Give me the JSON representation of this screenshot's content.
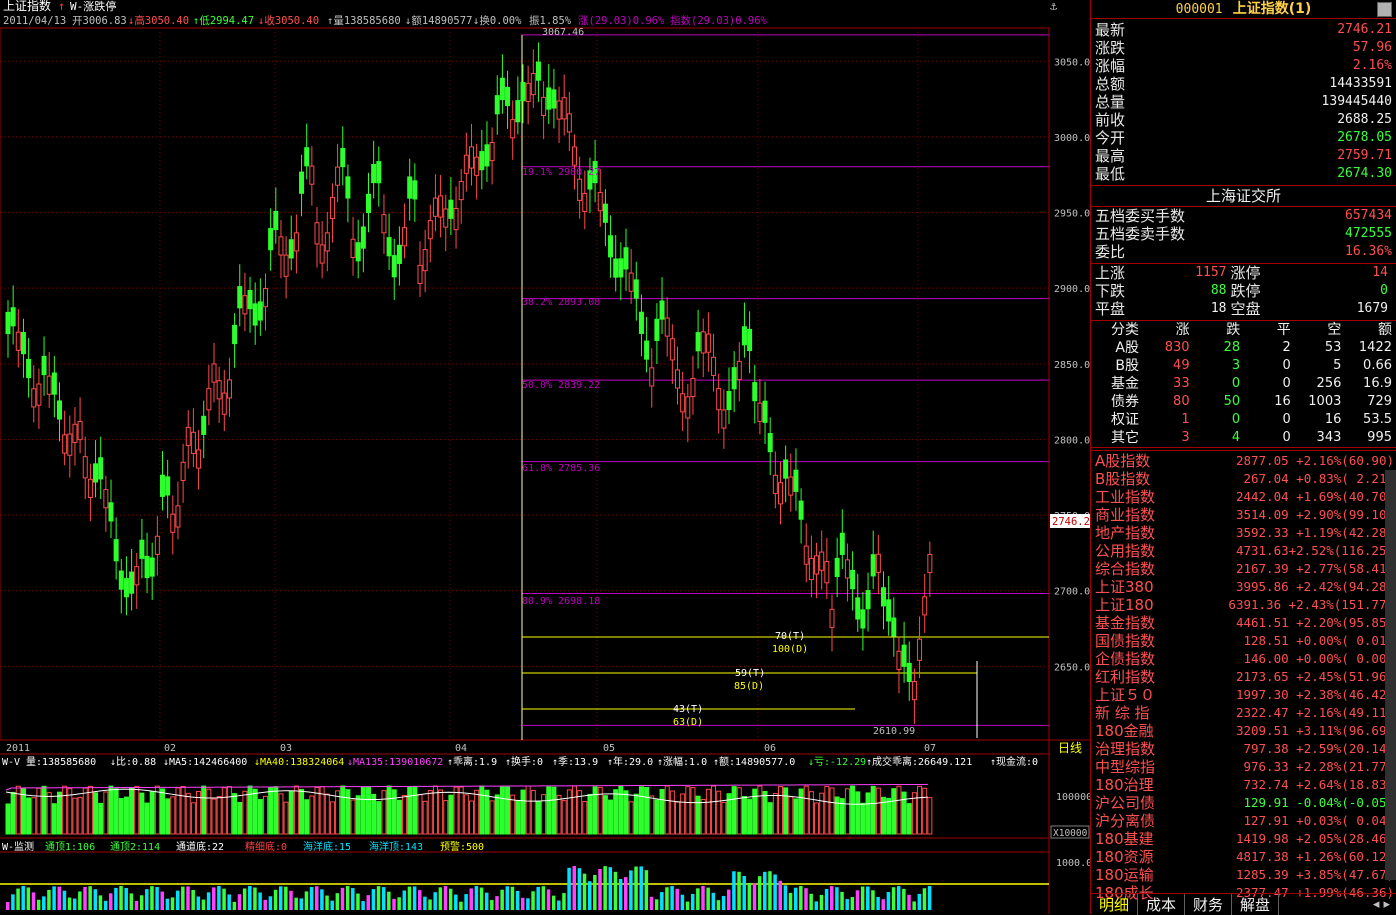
{
  "chart_header": {
    "title": "上证指数",
    "study": "W-涨跌停",
    "date": "2011/04/13",
    "open": "开3006.83",
    "high": "↓高3050.40",
    "low": "↑低2994.47",
    "close": "↓收3050.40",
    "vol": "↑量138585680",
    "amt": "↓额14890577",
    "turn": "↓换0.00%",
    "amp": "振1.85%",
    "chg": "涨(29.03)0.96%",
    "chg2": "指数(29.03)0.96%",
    "anchor_icon": "anchor-icon"
  },
  "fib": {
    "top": "3067.46",
    "l1": "19.1% 2980.27",
    "l2": "38.2% 2893.08",
    "l3": "50.0% 2839.22",
    "l4": "61.8% 2785.36",
    "l5": "80.9% 2698.18",
    "bottom": "2610.99"
  },
  "marks": [
    "70(T)",
    "100(D)",
    "59(T)",
    "85(D)",
    "43(T)",
    "63(D)"
  ],
  "price_ticks": [
    "3050.0",
    "3000.0",
    "2950.0",
    "2900.0",
    "2850.0",
    "2800.0",
    "2750.0",
    "2700.0",
    "2650.0"
  ],
  "current_price_tag": "2746.2",
  "date_ticks": [
    "2011",
    "02",
    "03",
    "04",
    "05",
    "06",
    "07"
  ],
  "period_label": "日线",
  "vol_header": {
    "name": "W-V",
    "a": "量:138585680",
    "b": "↓比:0.88",
    "c": "↓MA5:142466400",
    "d": "↓MA40:138324064",
    "e": "↓MA135:139010672",
    "f": "↑乖离:1.9",
    "g": "↑换手:0",
    "h": "↑季:13.9",
    "i": "↑年:29.0",
    "j": "↑涨幅:1.0",
    "k": "↑额:14890577.0",
    "l": "↓亏:-12.29",
    "m": "↑成交乖离:26649.121",
    "n": "↑现金流:0"
  },
  "vol_ticks": {
    "t1": "100000",
    "unit": "X10000"
  },
  "mon_header": {
    "name": "W-监测",
    "a": "通顶1:106",
    "b": "通顶2:114",
    "c": "通道底:22",
    "d": "精细底:0",
    "e": "海洋底:15",
    "f": "海洋顶:143",
    "g": "预警:500"
  },
  "mon_ticks": {
    "t1": "1000.0"
  },
  "panel": {
    "code": "000001",
    "name": "上证指数",
    "suffix": "(1)",
    "quote": [
      {
        "label": "最新",
        "value": "2746.21",
        "cls": "red"
      },
      {
        "label": "涨跌",
        "value": "57.96",
        "cls": "red"
      },
      {
        "label": "涨幅",
        "value": "2.16%",
        "cls": "red"
      },
      {
        "label": "总额",
        "value": "14433591",
        "cls": "wht"
      },
      {
        "label": "总量",
        "value": "139445440",
        "cls": "wht"
      },
      {
        "label": "前收",
        "value": "2688.25",
        "cls": "wht"
      },
      {
        "label": "今开",
        "value": "2678.05",
        "cls": "grn"
      },
      {
        "label": "最高",
        "value": "2759.71",
        "cls": "red"
      },
      {
        "label": "最低",
        "value": "2674.30",
        "cls": "grn"
      }
    ],
    "exchange": "上海证交所",
    "orders": [
      {
        "label": "五档委买手数",
        "value": "657434",
        "cls": "red"
      },
      {
        "label": "五档委卖手数",
        "value": "472555",
        "cls": "grn"
      },
      {
        "label": "委比",
        "value": "16.36%",
        "cls": "red"
      }
    ],
    "updown": [
      {
        "l1": "上涨",
        "v1": "1157",
        "c1": "red",
        "l2": "涨停",
        "v2": "14",
        "c2": "red"
      },
      {
        "l1": "下跌",
        "v1": "88",
        "c1": "grn",
        "l2": "跌停",
        "v2": "0",
        "c2": "grn"
      },
      {
        "l1": "平盘",
        "v1": "18",
        "c1": "wht",
        "l2": "空盘",
        "v2": "1679",
        "c2": "wht"
      }
    ],
    "class_headers": [
      "分类",
      "涨",
      "跌",
      "平",
      "空",
      "额"
    ],
    "classes": [
      {
        "name": "A股",
        "up": "830",
        "down": "28",
        "flat": "2",
        "empty": "53",
        "amt": "1422"
      },
      {
        "name": "B股",
        "up": "49",
        "down": "3",
        "flat": "0",
        "empty": "5",
        "amt": "0.66"
      },
      {
        "name": "基金",
        "up": "33",
        "down": "0",
        "flat": "0",
        "empty": "256",
        "amt": "16.9"
      },
      {
        "name": "债券",
        "up": "80",
        "down": "50",
        "flat": "16",
        "empty": "1003",
        "amt": "729"
      },
      {
        "name": "权证",
        "up": "1",
        "down": "0",
        "flat": "0",
        "empty": "16",
        "amt": "53.5"
      },
      {
        "name": "其它",
        "up": "3",
        "down": "4",
        "flat": "0",
        "empty": "343",
        "amt": "995"
      }
    ],
    "indices": [
      {
        "name": "A股指数",
        "value": "2877.05 +2.16%(60.90)",
        "cls": "red"
      },
      {
        "name": "B股指数",
        "value": "267.04 +0.83%( 2.21)",
        "cls": "red"
      },
      {
        "name": "工业指数",
        "value": "2442.04 +1.69%(40.70)",
        "cls": "red"
      },
      {
        "name": "商业指数",
        "value": "3514.09 +2.90%(99.10)",
        "cls": "red"
      },
      {
        "name": "地产指数",
        "value": "3592.33 +1.19%(42.28)",
        "cls": "red"
      },
      {
        "name": "公用指数",
        "value": "4731.63+2.52%(116.25)",
        "cls": "red"
      },
      {
        "name": "综合指数",
        "value": "2167.39 +2.77%(58.41)",
        "cls": "red"
      },
      {
        "name": "上证380",
        "value": "3995.86 +2.42%(94.28)",
        "cls": "red"
      },
      {
        "name": "上证180",
        "value": "6391.36 +2.43%(151.77)",
        "cls": "red"
      },
      {
        "name": "基金指数",
        "value": "4461.51 +2.20%(95.85)",
        "cls": "red"
      },
      {
        "name": "国债指数",
        "value": "128.51 +0.00%( 0.01)",
        "cls": "red"
      },
      {
        "name": "企债指数",
        "value": "146.00 +0.00%( 0.00)",
        "cls": "red"
      },
      {
        "name": "红利指数",
        "value": "2173.65 +2.45%(51.96)",
        "cls": "red"
      },
      {
        "name": "上证５０",
        "value": "1997.30 +2.38%(46.42)",
        "cls": "red"
      },
      {
        "name": "新 综 指",
        "value": "2322.47 +2.16%(49.11)",
        "cls": "red"
      },
      {
        "name": "180金融",
        "value": "3209.51 +3.11%(96.69)",
        "cls": "red"
      },
      {
        "name": "治理指数",
        "value": "797.38 +2.59%(20.14)",
        "cls": "red"
      },
      {
        "name": "中型综指",
        "value": "976.33 +2.28%(21.77)",
        "cls": "red"
      },
      {
        "name": "180治理",
        "value": "732.74 +2.64%(18.83)",
        "cls": "red"
      },
      {
        "name": "沪公司债",
        "value": "129.91 -0.04%(-0.05)",
        "cls": "grn"
      },
      {
        "name": "沪分离债",
        "value": "127.91 +0.03%( 0.04)",
        "cls": "red"
      },
      {
        "name": "180基建",
        "value": "1419.98 +2.05%(28.46)",
        "cls": "red"
      },
      {
        "name": "180资源",
        "value": "4817.38 +1.26%(60.12)",
        "cls": "red"
      },
      {
        "name": "180运输",
        "value": "1285.39 +3.85%(47.67)",
        "cls": "red"
      },
      {
        "name": "180成长",
        "value": "2377.47 +1.99%(46.36)",
        "cls": "red"
      }
    ],
    "tabs": [
      "明细",
      "成本",
      "财务",
      "解盘"
    ],
    "tab_arrows": "◂ ▸"
  },
  "colors": {
    "up": "#ff4a4a",
    "down": "#2cff2c",
    "fib": "#c000c0",
    "grid": "#7a0000",
    "yellow": "#ffff00"
  }
}
